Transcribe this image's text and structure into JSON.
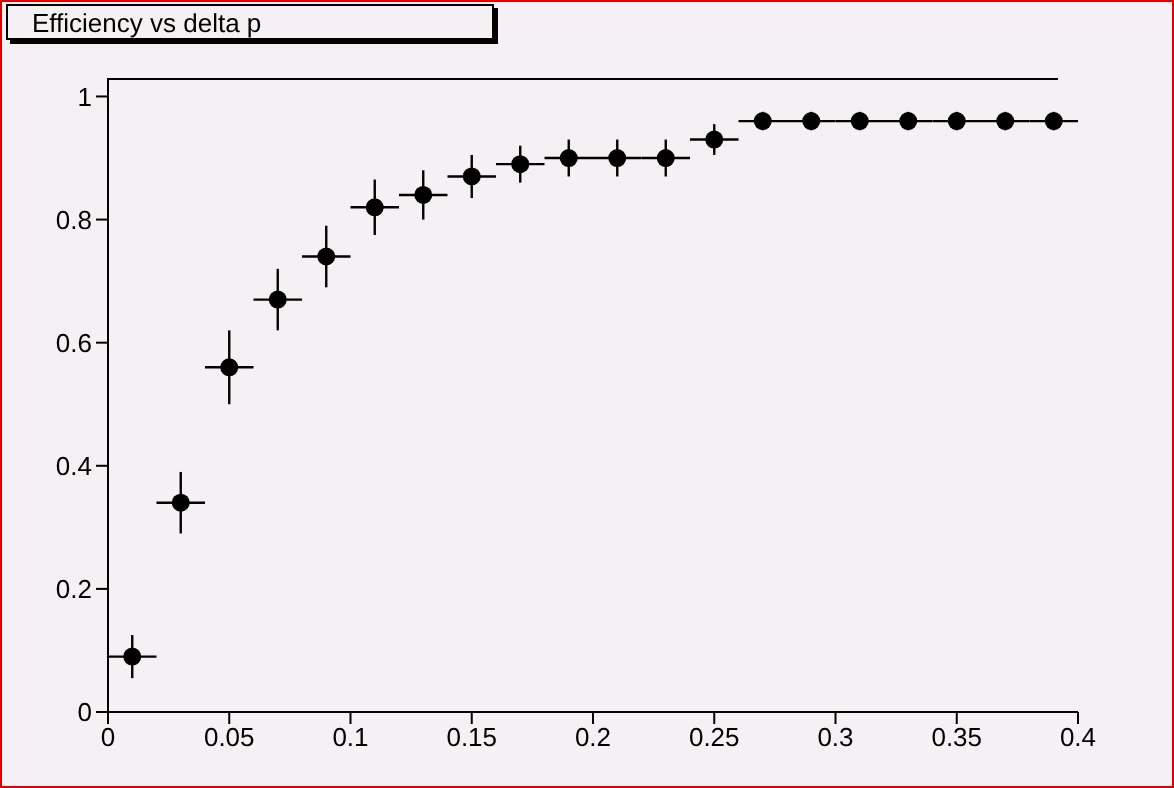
{
  "chart_data": {
    "type": "scatter",
    "title": "Efficiency vs delta p",
    "x": [
      0.01,
      0.03,
      0.05,
      0.07,
      0.09,
      0.11,
      0.13,
      0.15,
      0.17,
      0.19,
      0.21,
      0.23,
      0.25,
      0.27,
      0.29,
      0.31,
      0.33,
      0.35,
      0.37,
      0.39
    ],
    "values": [
      0.09,
      0.34,
      0.56,
      0.67,
      0.74,
      0.82,
      0.84,
      0.87,
      0.89,
      0.9,
      0.9,
      0.9,
      0.93,
      0.96,
      0.96,
      0.96,
      0.96,
      0.96,
      0.96,
      0.96
    ],
    "errors": [
      0.035,
      0.05,
      0.06,
      0.05,
      0.05,
      0.045,
      0.04,
      0.035,
      0.03,
      0.03,
      0.03,
      0.03,
      0.025,
      0.015,
      0.015,
      0.015,
      0.015,
      0.015,
      0.015,
      0.015
    ],
    "xerrors": [
      0.01,
      0.01,
      0.01,
      0.01,
      0.01,
      0.01,
      0.01,
      0.01,
      0.01,
      0.01,
      0.01,
      0.01,
      0.01,
      0.01,
      0.01,
      0.01,
      0.01,
      0.01,
      0.01,
      0.01
    ],
    "color": "#000000",
    "marker": "circle",
    "grid": false,
    "xlim": [
      0,
      0.4
    ],
    "xticks": [
      0,
      0.05,
      0.1,
      0.15,
      0.2,
      0.25,
      0.3,
      0.35,
      0.4
    ],
    "ylim": [
      0,
      1.03
    ],
    "yticks": [
      0,
      0.2,
      0.4,
      0.6,
      0.8,
      1
    ]
  }
}
